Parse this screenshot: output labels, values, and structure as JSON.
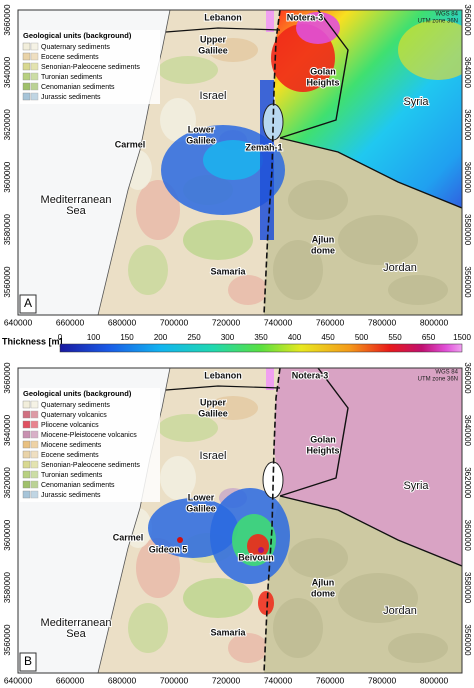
{
  "panels": [
    {
      "label": "A",
      "crs": [
        "WGS 84",
        "UTM zone 36N"
      ],
      "legend": {
        "title": "Geological units (background)",
        "items": [
          "Quaternary sediments",
          "Eocene sediments",
          "Senonian-Paleocene sediments",
          "Turonian sediments",
          "Cenomanian sediments",
          "Jurassic sediments"
        ]
      },
      "places": [
        {
          "lines": [
            "Lebanon"
          ]
        },
        {
          "lines": [
            "Notera-3"
          ]
        },
        {
          "lines": [
            "Upper",
            "Galilee"
          ]
        },
        {
          "lines": [
            "Golan",
            "Heights"
          ]
        },
        {
          "lines": [
            "Syria"
          ]
        },
        {
          "lines": [
            "Israel"
          ]
        },
        {
          "lines": [
            "Lower",
            "Galilee"
          ]
        },
        {
          "lines": [
            "Carmel"
          ]
        },
        {
          "lines": [
            "Zemah-1"
          ]
        },
        {
          "lines": [
            "Mediterranean",
            "Sea"
          ]
        },
        {
          "lines": [
            "Ajlun",
            "dome"
          ]
        },
        {
          "lines": [
            "Samaria"
          ]
        },
        {
          "lines": [
            "Jordan"
          ]
        }
      ]
    },
    {
      "label": "B",
      "crs": [
        "WGS 84",
        "UTM zone 36N"
      ],
      "legend": {
        "title": "Geological units (background)",
        "items": [
          "Quaternary sediments",
          "Quaternary volcanics",
          "Pliocene volcanics",
          "Miocene-Pleistocene volcanics",
          "Miocene sediments",
          "Eocene sediments",
          "Senonian-Paleocene sediments",
          "Turonian sediments",
          "Cenomanian sediments",
          "Jurassic sediments"
        ]
      },
      "places": [
        {
          "lines": [
            "Lebanon"
          ]
        },
        {
          "lines": [
            "Notera-3"
          ]
        },
        {
          "lines": [
            "Upper",
            "Galilee"
          ]
        },
        {
          "lines": [
            "Golan",
            "Heights"
          ]
        },
        {
          "lines": [
            "Syria"
          ]
        },
        {
          "lines": [
            "Israel"
          ]
        },
        {
          "lines": [
            "Lower",
            "Galilee"
          ]
        },
        {
          "lines": [
            "Carmel"
          ]
        },
        {
          "lines": [
            "Gideon 5"
          ]
        },
        {
          "lines": [
            "Beivoun"
          ]
        },
        {
          "lines": [
            "Mediterranean",
            "Sea"
          ]
        },
        {
          "lines": [
            "Ajlun",
            "dome"
          ]
        },
        {
          "lines": [
            "Samaria"
          ]
        },
        {
          "lines": [
            "Jordan"
          ]
        }
      ]
    }
  ],
  "x_ticks": [
    640000,
    660000,
    680000,
    700000,
    720000,
    740000,
    760000,
    780000,
    800000
  ],
  "y_ticks": [
    3560000,
    3580000,
    3600000,
    3620000,
    3640000,
    3660000
  ],
  "colorbar": {
    "title": "Thickness [m]",
    "ticks": [
      0,
      100,
      150,
      200,
      250,
      300,
      350,
      400,
      450,
      500,
      550,
      650,
      1500
    ]
  }
}
